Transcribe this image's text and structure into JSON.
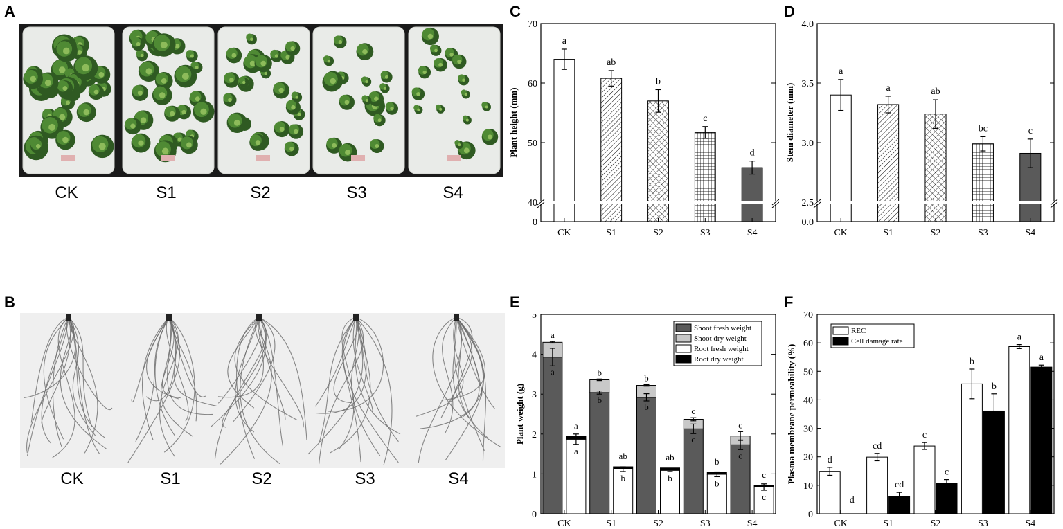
{
  "panels": {
    "A": {
      "letter": "A",
      "labels": [
        "CK",
        "S1",
        "S2",
        "S3",
        "S4"
      ]
    },
    "B": {
      "letter": "B",
      "labels": [
        "CK",
        "S1",
        "S2",
        "S3",
        "S4"
      ]
    },
    "C": {
      "letter": "C"
    },
    "D": {
      "letter": "D"
    },
    "E": {
      "letter": "E"
    },
    "F": {
      "letter": "F"
    }
  },
  "colors": {
    "tray": "#e9ebe8",
    "tray_bg": "#1a1a1a",
    "plant_dark": "#2f5a22",
    "plant_mid": "#4f8a34",
    "plant_light": "#8dbb5a",
    "root_bg": "#eeeeee",
    "root_line": "#6a6a6a",
    "dark_gray": "#5a5a5a",
    "light_gray": "#c8c8c8",
    "black": "#000000",
    "white": "#ffffff"
  },
  "chart_data": [
    {
      "id": "C",
      "type": "bar",
      "categories": [
        "CK",
        "S1",
        "S2",
        "S3",
        "S4"
      ],
      "values": [
        64.0,
        60.8,
        57.0,
        51.7,
        45.8
      ],
      "errors": [
        1.7,
        1.3,
        1.9,
        1.0,
        1.1
      ],
      "letters": [
        "a",
        "ab",
        "b",
        "c",
        "d"
      ],
      "patterns": [
        "none",
        "diag",
        "cross",
        "grid",
        "solid"
      ],
      "ylabel": "Plant height (mm)",
      "ylim": [
        40,
        70
      ],
      "broken_axis": true,
      "yticks": [
        40,
        50,
        60,
        70
      ],
      "ytick_below_break": [
        0
      ]
    },
    {
      "id": "D",
      "type": "bar",
      "categories": [
        "CK",
        "S1",
        "S2",
        "S3",
        "S4"
      ],
      "values": [
        3.4,
        3.32,
        3.24,
        2.99,
        2.91
      ],
      "errors": [
        0.13,
        0.07,
        0.12,
        0.06,
        0.12
      ],
      "letters": [
        "a",
        "a",
        "ab",
        "bc",
        "c"
      ],
      "patterns": [
        "none",
        "diag",
        "cross",
        "grid",
        "solid"
      ],
      "ylabel": "Stem diameter (mm)",
      "ylim": [
        2.5,
        4.0
      ],
      "broken_axis": true,
      "yticks": [
        "2.5",
        "3.0",
        "3.5",
        "4.0"
      ],
      "ytick_below_break": [
        "0.0"
      ]
    },
    {
      "id": "E",
      "type": "bar",
      "stacked": true,
      "categories": [
        "CK",
        "S1",
        "S2",
        "S3",
        "S4"
      ],
      "ylabel": "Plant weight (g)",
      "ylim": [
        0,
        5
      ],
      "yticks": [
        0,
        1,
        2,
        3,
        4,
        5
      ],
      "legend": [
        "Shoot fresh weight",
        "Shoot dry weight",
        "Root fresh weight",
        "Root dry weight"
      ],
      "shoot_fresh": [
        3.93,
        3.04,
        2.92,
        2.13,
        1.73
      ],
      "shoot_fresh_err": [
        0.22,
        0.04,
        0.09,
        0.12,
        0.12
      ],
      "shoot_total": [
        4.3,
        3.36,
        3.22,
        2.37,
        1.95
      ],
      "shoot_total_err": [
        0.02,
        0.02,
        0.02,
        0.04,
        0.11
      ],
      "root_fresh": [
        1.87,
        1.12,
        1.09,
        0.99,
        0.67
      ],
      "root_fresh_err": [
        0.13,
        0.06,
        0.03,
        0.06,
        0.08
      ],
      "root_dry": [
        0.07,
        0.06,
        0.06,
        0.05,
        0.04
      ],
      "letters_top": [
        "a",
        "b",
        "b",
        "c",
        "c"
      ],
      "letters_shoot": [
        "a",
        "b",
        "b",
        "c",
        "c"
      ],
      "letters_root_top": [
        "a",
        "ab",
        "ab",
        "b",
        "c"
      ],
      "letters_root": [
        "a",
        "b",
        "b",
        "b",
        "c"
      ]
    },
    {
      "id": "F",
      "type": "bar",
      "categories": [
        "CK",
        "S1",
        "S2",
        "S3",
        "S4"
      ],
      "ylabel": "Plasma membrane permeability (%)",
      "ylim": [
        0,
        70
      ],
      "yticks": [
        0,
        10,
        20,
        30,
        40,
        50,
        60,
        70
      ],
      "series": [
        {
          "name": "REC",
          "values": [
            14.9,
            19.9,
            23.8,
            45.6,
            58.7
          ],
          "errors": [
            1.4,
            1.3,
            1.2,
            5.2,
            0.7
          ],
          "letters": [
            "d",
            "cd",
            "c",
            "b",
            "a"
          ]
        },
        {
          "name": "Cell damage rate",
          "values": [
            0,
            6.0,
            10.6,
            36.1,
            51.5
          ],
          "errors": [
            0,
            1.5,
            1.4,
            6.0,
            0.7
          ],
          "letters": [
            "d",
            "cd",
            "c",
            "b",
            "a"
          ]
        }
      ]
    }
  ]
}
